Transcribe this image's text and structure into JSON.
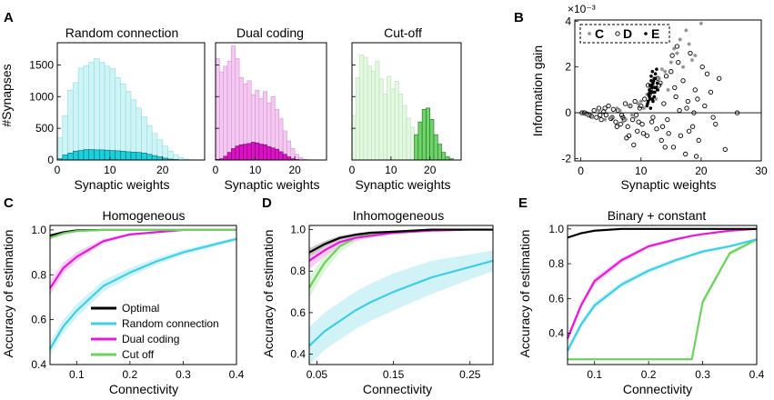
{
  "histograms": {
    "ylabel": "#Synapses",
    "xlabel": "Synaptic weights",
    "yticks": [
      0,
      500,
      1000,
      1500
    ],
    "xticks": [
      0,
      10,
      20
    ],
    "xlim": [
      0,
      28
    ],
    "ylim": [
      0,
      1850
    ],
    "panels": [
      {
        "letter": "A",
        "title": "Random connection",
        "light_color": "#cff4f6",
        "light_edge": "#8fdde2",
        "dark_color": "#1ad0dc",
        "dark_edge": "#0a6a72",
        "bin_start": 0,
        "bin_width": 1,
        "light_values": [
          350,
          700,
          1100,
          1220,
          1450,
          1490,
          1540,
          1600,
          1540,
          1480,
          1440,
          1300,
          1200,
          1080,
          950,
          820,
          680,
          540,
          420,
          320,
          220,
          140,
          80,
          40,
          15,
          5
        ],
        "dark_values": [
          20,
          80,
          110,
          140,
          150,
          165,
          165,
          160,
          160,
          155,
          150,
          145,
          140,
          130,
          125,
          120,
          110,
          90,
          70,
          50,
          30,
          15,
          8,
          3,
          1,
          0
        ]
      },
      {
        "letter": "",
        "title": "Dual coding",
        "light_color": "#f3c8f1",
        "light_edge": "#d995d5",
        "dark_color": "#e010c8",
        "dark_edge": "#6a0a60",
        "bin_start": 0,
        "bin_width": 1,
        "light_values": [
          1600,
          1390,
          1480,
          1560,
          1800,
          1600,
          1300,
          1200,
          1250,
          1030,
          1100,
          970,
          1080,
          900,
          1000,
          800,
          650,
          460,
          300,
          180,
          90,
          40,
          10,
          5,
          0,
          0
        ],
        "dark_values": [
          10,
          20,
          60,
          120,
          180,
          220,
          240,
          250,
          260,
          280,
          270,
          250,
          240,
          210,
          190,
          170,
          130,
          90,
          50,
          20,
          8,
          3,
          0,
          0,
          0,
          0
        ]
      },
      {
        "letter": "",
        "title": "Cut-off",
        "light_color": "#e4f7e2",
        "light_edge": "#b5e3b0",
        "dark_color": "#6ed46a",
        "dark_edge": "#246a20",
        "bin_start": 0,
        "bin_width": 1,
        "light_values": [
          700,
          1300,
          1660,
          1620,
          1480,
          1400,
          1560,
          1280,
          1040,
          1320,
          1120,
          1240,
          1040,
          860,
          660,
          520,
          400,
          300,
          200,
          120,
          70,
          40,
          20,
          10,
          5,
          0
        ],
        "dark_values": [
          0,
          0,
          0,
          0,
          0,
          0,
          0,
          0,
          0,
          0,
          0,
          0,
          0,
          0,
          0,
          0,
          400,
          600,
          800,
          820,
          640,
          400,
          250,
          120,
          50,
          20
        ]
      }
    ]
  },
  "scatter": {
    "letter": "B",
    "ylabel": "Information gain",
    "xlabel": "Synaptic weights",
    "exponent_label": "×10⁻³",
    "xlim": [
      -1,
      30
    ],
    "ylim": [
      -2.1,
      4.05
    ],
    "xticks": [
      0,
      10,
      20,
      30
    ],
    "yticks": [
      -2,
      0,
      2,
      4
    ],
    "legend": [
      {
        "label": "C",
        "marker": "star"
      },
      {
        "label": "D",
        "marker": "open-circle"
      },
      {
        "label": "E",
        "marker": "filled-dot"
      }
    ],
    "series": [
      {
        "name": "D",
        "marker": "open-circle",
        "x": [
          0.2,
          0.6,
          1.0,
          1.4,
          1.8,
          2.2,
          2.6,
          3.0,
          3.4,
          3.8,
          4.2,
          4.6,
          5.0,
          5.4,
          5.8,
          6.2,
          6.6,
          7.0,
          7.4,
          7.8,
          8.2,
          8.6,
          9.0,
          9.4,
          9.8,
          10.2,
          10.6,
          11.0,
          11.4,
          11.8,
          12.2,
          12.6,
          13.0,
          13.4,
          13.8,
          14.2,
          14.6,
          15.0,
          15.4,
          15.8,
          16.2,
          16.6,
          17.0,
          17.4,
          17.8,
          18.2,
          18.6,
          19.0,
          19.6,
          20.2,
          21.0,
          22.0,
          23.0,
          24.0,
          26.0,
          3.2,
          5.2,
          7.6,
          8.8,
          10.4,
          12.8,
          14.4,
          16.0,
          18.0,
          19.4,
          6.8,
          9.6,
          11.6,
          13.6,
          15.6,
          17.6,
          20.6,
          8.0,
          10.0,
          12.0,
          14.0,
          16.4,
          19.2,
          21.6,
          7.2,
          11.2,
          15.2,
          18.8,
          22.4,
          4.0,
          6.0,
          9.2,
          13.2
        ],
        "y": [
          0.0,
          0.0,
          -0.05,
          -0.1,
          -0.15,
          0.1,
          -0.2,
          0.2,
          -0.3,
          0.05,
          -0.1,
          0.3,
          -0.25,
          0.15,
          -0.4,
          0.1,
          -0.5,
          -0.2,
          0.4,
          -0.6,
          0.3,
          -0.3,
          0.5,
          -0.8,
          0.2,
          -0.5,
          0.6,
          -1.0,
          0.8,
          -0.4,
          1.0,
          -0.7,
          1.2,
          -1.2,
          0.4,
          1.6,
          -0.9,
          1.8,
          -1.5,
          0.7,
          2.2,
          -1.0,
          1.4,
          -1.8,
          0.5,
          2.6,
          -0.6,
          1.0,
          -1.2,
          2.0,
          1.7,
          -0.2,
          1.5,
          -1.6,
          0.0,
          -0.1,
          -0.2,
          -1.1,
          -1.4,
          -0.9,
          1.5,
          -0.3,
          2.9,
          -0.8,
          0.6,
          -0.1,
          -0.4,
          0.9,
          -0.6,
          1.1,
          0.2,
          0.3,
          -1.0,
          0.3,
          -0.2,
          -1.5,
          0.1,
          -1.9,
          0.9,
          -0.3,
          1.2,
          2.5,
          0.0,
          -0.5,
          0.2,
          -0.6,
          -0.1,
          1.3
        ],
        "color": "#000000"
      },
      {
        "name": "C",
        "marker": "star",
        "x": [
          1.0,
          2.0,
          3.0,
          4.0,
          5.0,
          6.0,
          7.0,
          8.0,
          9.0,
          10.0,
          11.0,
          12.0,
          13.0,
          14.0,
          15.0,
          16.0,
          17.0,
          18.0,
          19.0,
          14.5,
          15.5,
          12.5,
          13.5,
          16.5,
          10.5,
          11.5,
          8.5,
          9.5,
          17.5,
          18.5,
          20.0,
          7.5,
          6.5
        ],
        "y": [
          -0.1,
          -0.2,
          0.1,
          -0.3,
          -0.2,
          0.2,
          -0.4,
          0.3,
          -0.2,
          0.5,
          0.8,
          1.2,
          1.5,
          1.8,
          2.2,
          2.6,
          2.0,
          3.0,
          2.5,
          1.0,
          2.8,
          0.6,
          1.9,
          3.2,
          0.2,
          1.1,
          -0.1,
          0.4,
          3.6,
          2.3,
          3.9,
          -0.3,
          0.1
        ],
        "color": "#888888"
      },
      {
        "name": "E",
        "marker": "filled-dot",
        "x": [
          11.0,
          11.2,
          11.4,
          11.6,
          11.8,
          12.0,
          12.2,
          12.4,
          12.6,
          12.8,
          11.1,
          11.3,
          11.5,
          11.7,
          11.9,
          12.1,
          12.3,
          12.5,
          12.7,
          11.6,
          11.9,
          12.2,
          11.4,
          12.0,
          12.4,
          11.8,
          12.1,
          11.5,
          11.7,
          12.3
        ],
        "y": [
          0.3,
          0.5,
          0.7,
          0.9,
          1.1,
          1.3,
          1.5,
          1.7,
          1.9,
          1.0,
          0.4,
          0.8,
          1.2,
          1.6,
          0.6,
          1.4,
          0.9,
          1.1,
          1.3,
          0.2,
          1.8,
          0.7,
          1.0,
          0.5,
          1.5,
          1.2,
          0.9,
          0.6,
          1.4,
          1.1
        ],
        "color": "#000000"
      }
    ]
  },
  "line_panels": {
    "ylabel": "Accuracy of estimation",
    "xlabel": "Connectivity",
    "legend": [
      {
        "label": "Optimal",
        "color": "#000000"
      },
      {
        "label": "Random connection",
        "color": "#3ecfe3"
      },
      {
        "label": "Dual coding",
        "color": "#e41ad6"
      },
      {
        "label": "Cut off",
        "color": "#6dd15f"
      }
    ],
    "panels": [
      {
        "letter": "C",
        "title": "Homogeneous",
        "xlim": [
          0.05,
          0.4
        ],
        "ylim": [
          0.4,
          1.02
        ],
        "xticks": [
          0.1,
          0.2,
          0.3,
          0.4
        ],
        "yticks": [
          0.4,
          0.6,
          0.8,
          1.0
        ],
        "show_legend": true,
        "x": [
          0.05,
          0.075,
          0.1,
          0.15,
          0.2,
          0.25,
          0.3,
          0.35,
          0.4
        ],
        "series": [
          {
            "name": "Optimal",
            "color": "#000000",
            "band": "#bbbbbb",
            "y": [
              0.975,
              0.99,
              0.998,
              1.0,
              1.0,
              1.0,
              1.0,
              1.0,
              1.0
            ],
            "spread": [
              0.005,
              0.003,
              0.002,
              0.001,
              0.0,
              0.0,
              0.0,
              0.0,
              0.0
            ]
          },
          {
            "name": "Random connection",
            "color": "#3ecfe3",
            "band": "#c6f0f6",
            "y": [
              0.47,
              0.57,
              0.64,
              0.75,
              0.81,
              0.86,
              0.9,
              0.93,
              0.96
            ],
            "spread": [
              0.03,
              0.03,
              0.03,
              0.025,
              0.02,
              0.015,
              0.012,
              0.01,
              0.008
            ]
          },
          {
            "name": "Dual coding",
            "color": "#e41ad6",
            "band": "#f6c2f0",
            "y": [
              0.74,
              0.83,
              0.88,
              0.95,
              0.98,
              0.99,
              1.0,
              1.0,
              1.0
            ],
            "spread": [
              0.03,
              0.025,
              0.02,
              0.01,
              0.005,
              0.003,
              0.0,
              0.0,
              0.0
            ]
          },
          {
            "name": "Cut off",
            "color": "#6dd15f",
            "band": "#d5f3cf",
            "y": [
              0.965,
              0.985,
              0.995,
              1.0,
              1.0,
              1.0,
              1.0,
              1.0,
              1.0
            ],
            "spread": [
              0.008,
              0.005,
              0.003,
              0.0,
              0.0,
              0.0,
              0.0,
              0.0,
              0.0
            ]
          }
        ]
      },
      {
        "letter": "D",
        "title": "Inhomogeneous",
        "xlim": [
          0.04,
          0.28
        ],
        "ylim": [
          0.35,
          1.02
        ],
        "xticks": [
          0.05,
          0.15,
          0.25
        ],
        "yticks": [
          0.4,
          0.6,
          0.8,
          1.0
        ],
        "show_legend": false,
        "x": [
          0.04,
          0.06,
          0.08,
          0.1,
          0.12,
          0.15,
          0.2,
          0.25,
          0.28
        ],
        "series": [
          {
            "name": "Random connection",
            "color": "#3ecfe3",
            "band": "#c6f0f6",
            "y": [
              0.44,
              0.51,
              0.56,
              0.61,
              0.65,
              0.7,
              0.77,
              0.82,
              0.85
            ],
            "spread": [
              0.09,
              0.09,
              0.09,
              0.09,
              0.09,
              0.09,
              0.08,
              0.06,
              0.05
            ]
          },
          {
            "name": "Cut off",
            "color": "#6dd15f",
            "band": "#d5f3cf",
            "y": [
              0.72,
              0.84,
              0.92,
              0.96,
              0.98,
              0.99,
              1.0,
              1.0,
              1.0
            ],
            "spread": [
              0.05,
              0.04,
              0.03,
              0.02,
              0.01,
              0.005,
              0.0,
              0.0,
              0.0
            ]
          },
          {
            "name": "Dual coding",
            "color": "#e41ad6",
            "band": "#f6c2f0",
            "y": [
              0.85,
              0.9,
              0.94,
              0.96,
              0.97,
              0.985,
              0.995,
              1.0,
              1.0
            ],
            "spread": [
              0.04,
              0.03,
              0.02,
              0.015,
              0.01,
              0.008,
              0.003,
              0.0,
              0.0
            ]
          },
          {
            "name": "Optimal",
            "color": "#000000",
            "band": "#bbbbbb",
            "y": [
              0.89,
              0.93,
              0.96,
              0.975,
              0.985,
              0.99,
              1.0,
              1.0,
              1.0
            ],
            "spread": [
              0.02,
              0.015,
              0.01,
              0.008,
              0.005,
              0.003,
              0.0,
              0.0,
              0.0
            ]
          }
        ]
      },
      {
        "letter": "E",
        "title": "Binary + constant",
        "xlim": [
          0.05,
          0.4
        ],
        "ylim": [
          0.22,
          1.02
        ],
        "xticks": [
          0.1,
          0.2,
          0.3,
          0.4
        ],
        "yticks": [
          0.4,
          0.6,
          0.8,
          1.0
        ],
        "show_legend": false,
        "x": [
          0.05,
          0.075,
          0.1,
          0.15,
          0.2,
          0.25,
          0.28,
          0.3,
          0.35,
          0.4
        ],
        "series": [
          {
            "name": "Cut off",
            "color": "#6dd15f",
            "band": "#d5f3cf",
            "y": [
              0.25,
              0.25,
              0.25,
              0.25,
              0.25,
              0.25,
              0.25,
              0.58,
              0.86,
              0.94
            ],
            "spread": [
              0.0,
              0.0,
              0.0,
              0.0,
              0.0,
              0.0,
              0.0,
              0.02,
              0.015,
              0.01
            ]
          },
          {
            "name": "Random connection",
            "color": "#3ecfe3",
            "band": "#c6f0f6",
            "y": [
              0.3,
              0.45,
              0.56,
              0.68,
              0.76,
              0.82,
              0.85,
              0.87,
              0.9,
              0.94
            ],
            "spread": [
              0.02,
              0.02,
              0.02,
              0.015,
              0.015,
              0.012,
              0.01,
              0.01,
              0.008,
              0.006
            ]
          },
          {
            "name": "Dual coding",
            "color": "#e41ad6",
            "band": "#f6c2f0",
            "y": [
              0.37,
              0.56,
              0.7,
              0.82,
              0.9,
              0.94,
              0.96,
              0.97,
              0.99,
              1.0
            ],
            "spread": [
              0.02,
              0.02,
              0.02,
              0.015,
              0.01,
              0.008,
              0.005,
              0.005,
              0.003,
              0.0
            ]
          },
          {
            "name": "Optimal",
            "color": "#000000",
            "band": "#bbbbbb",
            "y": [
              0.95,
              0.975,
              0.99,
              1.0,
              1.0,
              1.0,
              1.0,
              1.0,
              1.0,
              1.0
            ],
            "spread": [
              0.005,
              0.004,
              0.003,
              0.0,
              0.0,
              0.0,
              0.0,
              0.0,
              0.0,
              0.0
            ]
          }
        ]
      }
    ]
  }
}
